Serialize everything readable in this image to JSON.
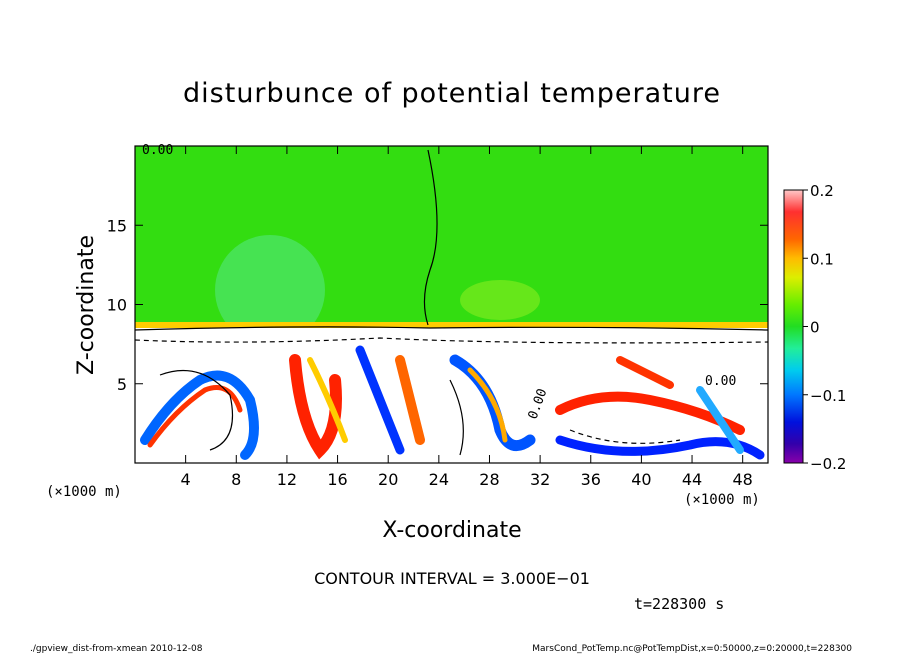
{
  "chart_data": {
    "type": "heatmap",
    "title": "disturbunce of potential temperature",
    "xlabel": "X-coordinate",
    "ylabel": "Z-coordinate",
    "x_unit_label": "(×1000 m)",
    "z_unit_label": "(×1000 m)",
    "xlim": [
      0,
      50
    ],
    "ylim": [
      0,
      20
    ],
    "x_ticks": [
      4,
      8,
      12,
      16,
      20,
      24,
      28,
      32,
      36,
      40,
      44,
      48
    ],
    "y_ticks": [
      5,
      10,
      15
    ],
    "colorbar": {
      "min": -0.2,
      "max": 0.2,
      "ticks": [
        "0.2",
        "0.1",
        "0",
        "−0.1",
        "−0.2"
      ],
      "tick_values": [
        0.2,
        0.1,
        0,
        -0.1,
        -0.2
      ]
    },
    "contour_labels": [
      "0.00",
      "0.00",
      "0.00"
    ],
    "contour_interval_text": "CONTOUR INTERVAL = 3.000E−01",
    "time_text": "t=228300 s"
  },
  "footer": {
    "left": "./gpview_dist-from-xmean  2010-12-08",
    "right": "MarsCond_PotTemp.nc@PotTempDist,x=0:50000,z=0:20000,t=228300"
  },
  "colors": {
    "upper_field": "#33dd11",
    "lower_field": "#ffffff",
    "warm": "#ff2200",
    "cold": "#0033ff"
  }
}
